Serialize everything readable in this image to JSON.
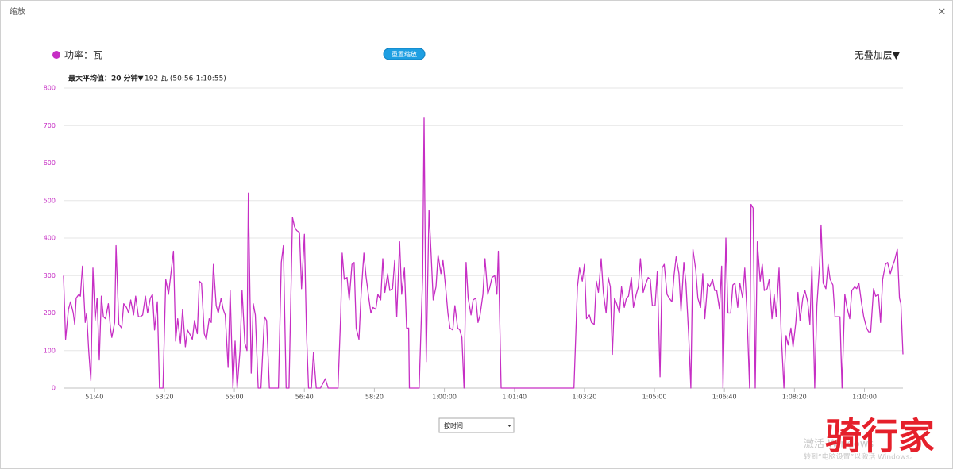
{
  "window": {
    "title": "缩放",
    "close": "×"
  },
  "controls": {
    "reset_zoom": "重置缩放",
    "overlay": "无叠加层▼",
    "max_average_label": "最大平均值：20 分钟▼",
    "max_average_value": "192 瓦 (50:56-1:10:55)",
    "x_mode": "按时间"
  },
  "watermark": {
    "line1": "激活 Windows",
    "line2": "转到“电脑设置”以激活 Windows。",
    "logo": "骑行家"
  },
  "chart_data": {
    "type": "line",
    "series": [
      {
        "name": "功率：瓦",
        "color": "#c62ec4",
        "values": [
          300,
          130,
          210,
          230,
          200,
          170,
          240,
          250,
          245,
          325,
          175,
          200,
          100,
          20,
          320,
          180,
          240,
          75,
          245,
          190,
          185,
          225,
          160,
          135,
          175,
          380,
          170,
          160,
          225,
          215,
          200,
          235,
          195,
          245,
          190,
          190,
          195,
          245,
          200,
          240,
          250,
          155,
          230,
          0,
          0,
          290,
          250,
          300,
          365,
          125,
          185,
          120,
          210,
          110,
          155,
          145,
          130,
          180,
          145,
          285,
          280,
          145,
          130,
          185,
          175,
          330,
          220,
          200,
          240,
          210,
          195,
          55,
          260,
          0,
          125,
          0,
          100,
          260,
          120,
          100,
          520,
          40,
          225,
          195,
          0,
          0,
          190,
          180,
          0,
          0,
          0,
          335,
          380,
          0,
          0,
          455,
          430,
          420,
          415,
          265,
          410,
          150,
          0,
          0,
          95,
          0,
          0,
          25,
          0,
          0,
          0,
          200,
          360,
          290,
          295,
          235,
          330,
          335,
          160,
          130,
          250,
          360,
          300,
          240,
          200,
          215,
          210,
          250,
          235,
          345,
          255,
          305,
          260,
          265,
          340,
          190,
          390,
          250,
          320,
          160,
          160,
          0,
          0,
          0,
          300,
          720,
          70,
          475,
          360,
          235,
          270,
          355,
          305,
          340,
          265,
          200,
          160,
          155,
          220,
          160,
          155,
          135,
          0,
          335,
          240,
          195,
          235,
          240,
          175,
          195,
          250,
          345,
          250,
          270,
          295,
          300,
          250,
          365,
          0,
          0,
          0,
          0,
          270,
          320,
          285,
          330,
          185,
          195,
          175,
          170,
          285,
          255,
          345,
          255,
          200,
          295,
          270,
          90,
          240,
          225,
          200,
          270,
          215,
          240,
          245,
          295,
          215,
          250,
          270,
          345,
          255,
          275,
          295,
          290,
          220,
          220,
          310,
          30,
          320,
          330,
          250,
          240,
          230,
          300,
          350,
          305,
          205,
          335,
          280,
          140,
          0,
          370,
          315,
          240,
          215,
          305,
          185,
          280,
          270,
          290,
          260,
          260,
          210,
          325,
          0,
          400,
          200,
          200,
          275,
          280,
          215,
          280,
          240,
          320,
          210,
          0,
          490,
          480,
          0,
          390,
          285,
          330,
          260,
          265,
          290,
          185,
          250,
          190,
          320,
          150,
          0,
          140,
          115,
          160,
          110,
          175,
          255,
          180,
          240,
          260,
          230,
          170,
          325,
          0,
          220,
          330,
          435,
          280,
          265,
          330,
          290,
          275,
          190,
          190,
          190,
          0,
          250,
          215,
          185,
          260,
          270,
          265,
          280,
          225,
          190,
          160,
          150,
          150,
          265,
          245,
          250,
          175,
          290,
          330,
          335,
          305,
          325,
          340,
          370,
          240,
          225,
          90
        ]
      }
    ],
    "x": [
      3056,
      3059,
      3063,
      3066,
      3070,
      3072,
      3074,
      3078,
      3080,
      3083,
      3087,
      3089,
      3092,
      3095,
      3098,
      3101,
      3104,
      3107,
      3110,
      3113,
      3116,
      3120,
      3123,
      3125,
      3129,
      3131,
      3135,
      3139,
      3142,
      3146,
      3149,
      3152,
      3156,
      3159,
      3163,
      3166,
      3169,
      3173,
      3176,
      3180,
      3183,
      3186,
      3190,
      3193,
      3198,
      3202,
      3206,
      3209,
      3213,
      3216,
      3219,
      3223,
      3226,
      3230,
      3233,
      3236,
      3240,
      3243,
      3247,
      3250,
      3253,
      3257,
      3260,
      3264,
      3267,
      3270,
      3274,
      3277,
      3281,
      3284,
      3287,
      3291,
      3294,
      3298,
      3301,
      3304,
      3308,
      3311,
      3315,
      3318,
      3320,
      3324,
      3327,
      3330,
      3334,
      3338,
      3343,
      3346,
      3350,
      3357,
      3363,
      3367,
      3370,
      3374,
      3378,
      3383,
      3386,
      3389,
      3393,
      3396,
      3400,
      3403,
      3406,
      3410,
      3413,
      3417,
      3423,
      3430,
      3434,
      3442,
      3448,
      3452,
      3454,
      3457,
      3461,
      3464,
      3468,
      3471,
      3474,
      3478,
      3481,
      3485,
      3488,
      3492,
      3495,
      3498,
      3502,
      3505,
      3509,
      3512,
      3515,
      3519,
      3522,
      3526,
      3529,
      3532,
      3536,
      3539,
      3543,
      3546,
      3549,
      3550,
      3557,
      3564,
      3569,
      3571,
      3574,
      3578,
      3581,
      3584,
      3588,
      3591,
      3595,
      3598,
      3602,
      3605,
      3608,
      3612,
      3615,
      3619,
      3622,
      3625,
      3628,
      3631,
      3634,
      3638,
      3641,
      3645,
      3648,
      3651,
      3655,
      3658,
      3662,
      3665,
      3668,
      3672,
      3675,
      3677,
      3681,
      3691,
      3736,
      3785,
      3790,
      3793,
      3797,
      3800,
      3803,
      3807,
      3810,
      3814,
      3817,
      3820,
      3824,
      3827,
      3831,
      3834,
      3837,
      3840,
      3843,
      3846,
      3850,
      3853,
      3857,
      3860,
      3863,
      3867,
      3870,
      3874,
      3877,
      3880,
      3884,
      3887,
      3891,
      3894,
      3897,
      3901,
      3904,
      3908,
      3911,
      3914,
      3918,
      3921,
      3925,
      3928,
      3931,
      3935,
      3938,
      3942,
      3945,
      3949,
      3952,
      3955,
      3959,
      3962,
      3966,
      3969,
      3972,
      3976,
      3979,
      3983,
      3986,
      3989,
      3993,
      3996,
      3998,
      4002,
      4005,
      4009,
      4012,
      4015,
      4019,
      4022,
      4026,
      4029,
      4032,
      4036,
      4038,
      4041,
      4044,
      4047,
      4051,
      4054,
      4057,
      4061,
      4064,
      4068,
      4071,
      4074,
      4078,
      4081,
      4085,
      4088,
      4091,
      4095,
      4098,
      4102,
      4105,
      4108,
      4112,
      4115,
      4119,
      4122,
      4125,
      4129,
      4132,
      4136,
      4138,
      4141,
      4145,
      4148,
      4151,
      4155,
      4158,
      4162,
      4165,
      4168,
      4172,
      4175,
      4179,
      4182,
      4186,
      4189,
      4192,
      4196,
      4199,
      4203,
      4206,
      4209,
      4213,
      4216,
      4220,
      4223,
      4226,
      4230,
      4233,
      4237,
      4240,
      4243,
      4247,
      4250,
      4252,
      4255
    ],
    "xlim": [
      3056,
      4255
    ],
    "xticks": [
      {
        "value": 3100,
        "label": "51:40"
      },
      {
        "value": 3200,
        "label": "53:20"
      },
      {
        "value": 3300,
        "label": "55:00"
      },
      {
        "value": 3400,
        "label": "56:40"
      },
      {
        "value": 3500,
        "label": "58:20"
      },
      {
        "value": 3600,
        "label": "1:00:00"
      },
      {
        "value": 3700,
        "label": "1:01:40"
      },
      {
        "value": 3800,
        "label": "1:03:20"
      },
      {
        "value": 3900,
        "label": "1:05:00"
      },
      {
        "value": 4000,
        "label": "1:06:40"
      },
      {
        "value": 4100,
        "label": "1:08:20"
      },
      {
        "value": 4200,
        "label": "1:10:00"
      }
    ],
    "ylim": [
      0,
      800
    ],
    "yticks": [
      0,
      100,
      200,
      300,
      400,
      500,
      600,
      700,
      800
    ],
    "grid": true
  }
}
